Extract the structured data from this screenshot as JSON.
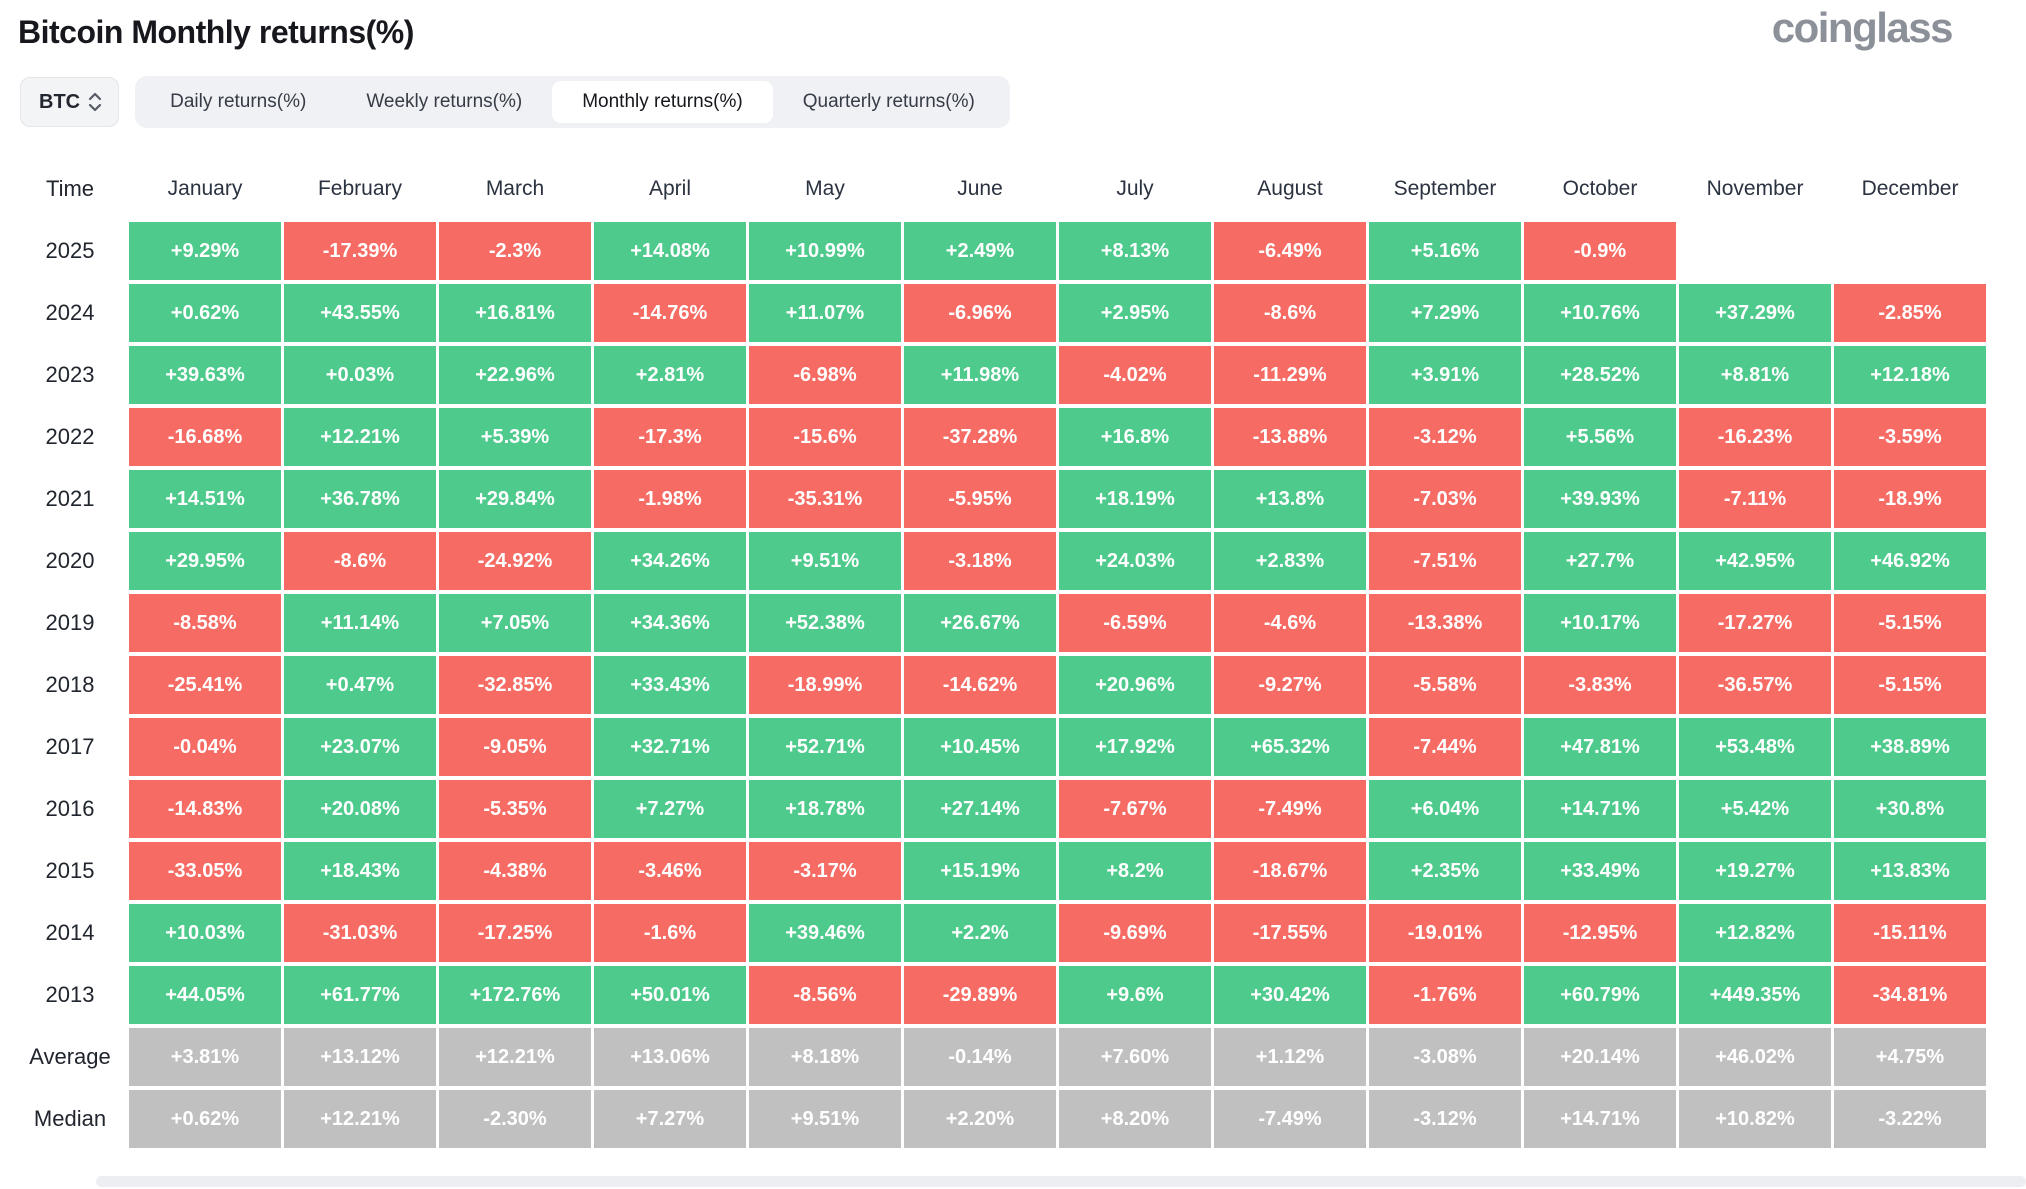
{
  "page": {
    "title": "Bitcoin Monthly returns(%)",
    "brand": "coinglass"
  },
  "controls": {
    "coin_selector": {
      "label": "BTC",
      "icon": "up-down-chevron-icon"
    },
    "tabs": [
      {
        "label": "Daily returns(%)",
        "active": false
      },
      {
        "label": "Weekly returns(%)",
        "active": false
      },
      {
        "label": "Monthly returns(%)",
        "active": true
      },
      {
        "label": "Quarterly returns(%)",
        "active": false
      }
    ]
  },
  "colors": {
    "positive": "#4ecb8c",
    "negative": "#f66c64",
    "neutral": "#c0c0c0"
  },
  "chart_data": {
    "type": "table",
    "title": "Bitcoin Monthly returns(%)",
    "columns": [
      "Time",
      "January",
      "February",
      "March",
      "April",
      "May",
      "June",
      "July",
      "August",
      "September",
      "October",
      "November",
      "December"
    ],
    "rows": [
      {
        "label": "2025",
        "values": [
          "+9.29%",
          "-17.39%",
          "-2.3%",
          "+14.08%",
          "+10.99%",
          "+2.49%",
          "+8.13%",
          "-6.49%",
          "+5.16%",
          "-0.9%",
          "",
          ""
        ]
      },
      {
        "label": "2024",
        "values": [
          "+0.62%",
          "+43.55%",
          "+16.81%",
          "-14.76%",
          "+11.07%",
          "-6.96%",
          "+2.95%",
          "-8.6%",
          "+7.29%",
          "+10.76%",
          "+37.29%",
          "-2.85%"
        ]
      },
      {
        "label": "2023",
        "values": [
          "+39.63%",
          "+0.03%",
          "+22.96%",
          "+2.81%",
          "-6.98%",
          "+11.98%",
          "-4.02%",
          "-11.29%",
          "+3.91%",
          "+28.52%",
          "+8.81%",
          "+12.18%"
        ]
      },
      {
        "label": "2022",
        "values": [
          "-16.68%",
          "+12.21%",
          "+5.39%",
          "-17.3%",
          "-15.6%",
          "-37.28%",
          "+16.8%",
          "-13.88%",
          "-3.12%",
          "+5.56%",
          "-16.23%",
          "-3.59%"
        ]
      },
      {
        "label": "2021",
        "values": [
          "+14.51%",
          "+36.78%",
          "+29.84%",
          "-1.98%",
          "-35.31%",
          "-5.95%",
          "+18.19%",
          "+13.8%",
          "-7.03%",
          "+39.93%",
          "-7.11%",
          "-18.9%"
        ]
      },
      {
        "label": "2020",
        "values": [
          "+29.95%",
          "-8.6%",
          "-24.92%",
          "+34.26%",
          "+9.51%",
          "-3.18%",
          "+24.03%",
          "+2.83%",
          "-7.51%",
          "+27.7%",
          "+42.95%",
          "+46.92%"
        ]
      },
      {
        "label": "2019",
        "values": [
          "-8.58%",
          "+11.14%",
          "+7.05%",
          "+34.36%",
          "+52.38%",
          "+26.67%",
          "-6.59%",
          "-4.6%",
          "-13.38%",
          "+10.17%",
          "-17.27%",
          "-5.15%"
        ]
      },
      {
        "label": "2018",
        "values": [
          "-25.41%",
          "+0.47%",
          "-32.85%",
          "+33.43%",
          "-18.99%",
          "-14.62%",
          "+20.96%",
          "-9.27%",
          "-5.58%",
          "-3.83%",
          "-36.57%",
          "-5.15%"
        ]
      },
      {
        "label": "2017",
        "values": [
          "-0.04%",
          "+23.07%",
          "-9.05%",
          "+32.71%",
          "+52.71%",
          "+10.45%",
          "+17.92%",
          "+65.32%",
          "-7.44%",
          "+47.81%",
          "+53.48%",
          "+38.89%"
        ]
      },
      {
        "label": "2016",
        "values": [
          "-14.83%",
          "+20.08%",
          "-5.35%",
          "+7.27%",
          "+18.78%",
          "+27.14%",
          "-7.67%",
          "-7.49%",
          "+6.04%",
          "+14.71%",
          "+5.42%",
          "+30.8%"
        ]
      },
      {
        "label": "2015",
        "values": [
          "-33.05%",
          "+18.43%",
          "-4.38%",
          "-3.46%",
          "-3.17%",
          "+15.19%",
          "+8.2%",
          "-18.67%",
          "+2.35%",
          "+33.49%",
          "+19.27%",
          "+13.83%"
        ]
      },
      {
        "label": "2014",
        "values": [
          "+10.03%",
          "-31.03%",
          "-17.25%",
          "-1.6%",
          "+39.46%",
          "+2.2%",
          "-9.69%",
          "-17.55%",
          "-19.01%",
          "-12.95%",
          "+12.82%",
          "-15.11%"
        ]
      },
      {
        "label": "2013",
        "values": [
          "+44.05%",
          "+61.77%",
          "+172.76%",
          "+50.01%",
          "-8.56%",
          "-29.89%",
          "+9.6%",
          "+30.42%",
          "-1.76%",
          "+60.79%",
          "+449.35%",
          "-34.81%"
        ]
      },
      {
        "label": "Average",
        "neutral": true,
        "values": [
          "+3.81%",
          "+13.12%",
          "+12.21%",
          "+13.06%",
          "+8.18%",
          "-0.14%",
          "+7.60%",
          "+1.12%",
          "-3.08%",
          "+20.14%",
          "+46.02%",
          "+4.75%"
        ]
      },
      {
        "label": "Median",
        "neutral": true,
        "values": [
          "+0.62%",
          "+12.21%",
          "-2.30%",
          "+7.27%",
          "+9.51%",
          "+2.20%",
          "+8.20%",
          "-7.49%",
          "-3.12%",
          "+14.71%",
          "+10.82%",
          "-3.22%"
        ]
      }
    ]
  }
}
